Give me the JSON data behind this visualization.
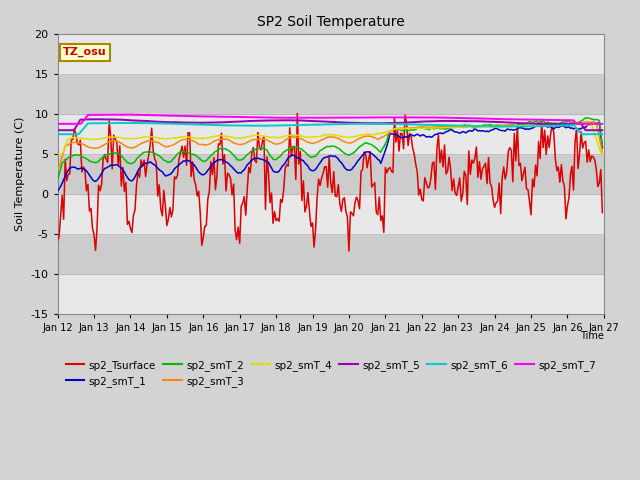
{
  "title": "SP2 Soil Temperature",
  "xlabel": "Time",
  "ylabel": "Soil Temperature (C)",
  "ylim": [
    -15,
    20
  ],
  "series_colors": {
    "sp2_Tsurface": "#dd0000",
    "sp2_smT_1": "#0000cc",
    "sp2_smT_2": "#00bb00",
    "sp2_smT_3": "#ff8800",
    "sp2_smT_4": "#dddd00",
    "sp2_smT_5": "#9900aa",
    "sp2_smT_6": "#00cccc",
    "sp2_smT_7": "#ff00ff"
  },
  "x_tick_labels": [
    "Jan 12",
    "Jan 13",
    "Jan 14",
    "Jan 15",
    "Jan 16",
    "Jan 17",
    "Jan 18",
    "Jan 19",
    "Jan 20",
    "Jan 21",
    "Jan 22",
    "Jan 23",
    "Jan 24",
    "Jan 25",
    "Jan 26",
    "Jan 27"
  ],
  "yticks": [
    -15,
    -10,
    -5,
    0,
    5,
    10,
    15,
    20
  ],
  "fig_bg": "#d3d3d3",
  "plot_bg": "#c8c8c8",
  "band_colors": [
    "#e8e8e8",
    "#d0d0d0"
  ],
  "tz_label": "TZ_osu",
  "tz_text_color": "#cc0000",
  "tz_bg": "#ffffcc",
  "tz_border": "#aa8800"
}
